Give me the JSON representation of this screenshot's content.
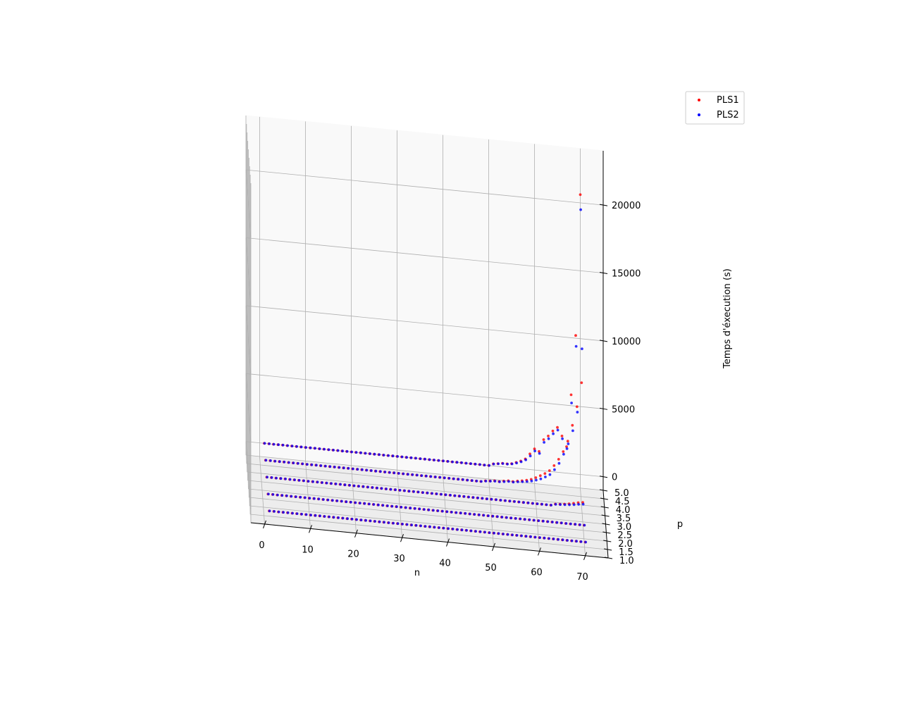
{
  "chart_data": {
    "type": "scatter",
    "title": "",
    "xlabel": "n",
    "ylabel": "p",
    "zlabel": "Temps d'éxecution (s)",
    "xlim": [
      -3,
      75
    ],
    "ylim": [
      1,
      5
    ],
    "zlim": [
      -1000,
      24000
    ],
    "x_ticks": [
      0,
      10,
      20,
      30,
      40,
      50,
      60,
      70
    ],
    "y_ticks": [
      1.0,
      1.5,
      2.0,
      2.5,
      3.0,
      3.5,
      4.0,
      4.5,
      5.0
    ],
    "z_ticks": [
      0,
      5000,
      10000,
      15000,
      20000
    ],
    "x_tick_labels": [
      "0",
      "10",
      "20",
      "30",
      "40",
      "50",
      "60",
      "70"
    ],
    "y_tick_labels": [
      "1.0",
      "1.5",
      "2.0",
      "2.5",
      "3.0",
      "3.5",
      "4.0",
      "4.5",
      "5.0"
    ],
    "z_tick_labels": [
      "0",
      "5000",
      "10000",
      "15000",
      "20000"
    ],
    "grid": true,
    "legend": "top-right",
    "series": [
      {
        "name": "PLS1",
        "color": "#ff0000",
        "rows": [
          {
            "p": 1,
            "n_start": 1,
            "n_end": 70,
            "z": []
          },
          {
            "p": 2,
            "n_start": 1,
            "n_end": 70,
            "z": []
          },
          {
            "p": 3,
            "n_start": 1,
            "n_end": 70,
            "z": [
              110,
              140,
              180,
              230,
              300,
              380,
              430
            ]
          },
          {
            "p": 4,
            "n_start": 1,
            "n_end": 70,
            "z": [
              80,
              110,
              150,
              130,
              200,
              250,
              230,
              300,
              350,
              420,
              520,
              680,
              860,
              1050,
              1300,
              1700,
              2200,
              2800,
              3600,
              4800,
              6200,
              8000
            ]
          },
          {
            "p": 5,
            "n_start": 1,
            "n_end": 70,
            "z": [
              150,
              200,
              260,
              250,
              300,
              420,
              560,
              750,
              1150,
              1550,
              1400,
              2300,
              2600,
              3000,
              3300,
              2700,
              1950,
              5800,
              10200,
              20600
            ]
          }
        ]
      },
      {
        "name": "PLS2",
        "color": "#0000ff",
        "rows": [
          {
            "p": 1,
            "n_start": 1,
            "n_end": 70,
            "z": []
          },
          {
            "p": 2,
            "n_start": 1,
            "n_end": 70,
            "z": []
          },
          {
            "p": 3,
            "n_start": 1,
            "n_end": 70,
            "z": [
              90,
              110,
              130,
              160,
              200,
              260,
              300
            ]
          },
          {
            "p": 4,
            "n_start": 1,
            "n_end": 70,
            "z": [
              60,
              90,
              120,
              110,
              150,
              200,
              180,
              240,
              280,
              330,
              400,
              500,
              620,
              800,
              1000,
              1400,
              1900,
              2600,
              3400,
              4400,
              5800,
              10500
            ]
          },
          {
            "p": 5,
            "n_start": 1,
            "n_end": 70,
            "z": [
              140,
              190,
              240,
              230,
              280,
              380,
              500,
              680,
              1000,
              1400,
              1250,
              2100,
              2400,
              2800,
              3100,
              2500,
              1800,
              5200,
              9400,
              19500
            ]
          }
        ]
      }
    ]
  }
}
